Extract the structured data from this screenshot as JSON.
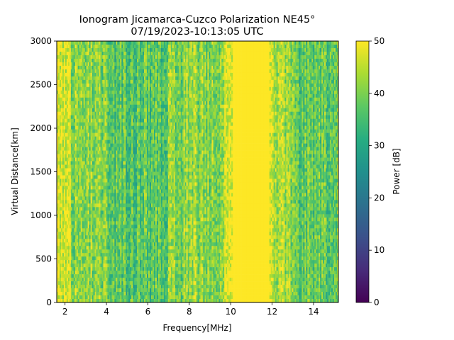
{
  "chart_data": {
    "type": "heatmap",
    "title": "Ionogram Jicamarca-Cuzco Polarization NE45°",
    "subtitle": "07/19/2023-10:13:05 UTC",
    "xlabel": "Frequency[MHz]",
    "ylabel": "Virtual Distance[km]",
    "xlim": [
      1.6,
      15.2
    ],
    "ylim": [
      0,
      3000
    ],
    "x_ticks": [
      2,
      4,
      6,
      8,
      10,
      12,
      14
    ],
    "y_ticks": [
      0,
      500,
      1000,
      1500,
      2000,
      2500,
      3000
    ],
    "colorbar": {
      "label": "Power [dB]",
      "range": [
        0,
        50
      ],
      "ticks": [
        0,
        10,
        20,
        30,
        40,
        50
      ],
      "colormap": "viridis"
    },
    "value_profile": {
      "description_units": "typical power in dB per frequency band",
      "bands": [
        {
          "from": 1.6,
          "to": 2.3,
          "mean": 47
        },
        {
          "from": 2.3,
          "to": 4.0,
          "mean": 41
        },
        {
          "from": 4.0,
          "to": 7.0,
          "mean": 37
        },
        {
          "from": 7.0,
          "to": 9.5,
          "mean": 41
        },
        {
          "from": 9.5,
          "to": 10.0,
          "mean": 44
        },
        {
          "from": 10.0,
          "to": 12.0,
          "mean": 50
        },
        {
          "from": 12.0,
          "to": 13.0,
          "mean": 43
        },
        {
          "from": 13.0,
          "to": 15.2,
          "mean": 38
        }
      ]
    },
    "grid": false
  }
}
